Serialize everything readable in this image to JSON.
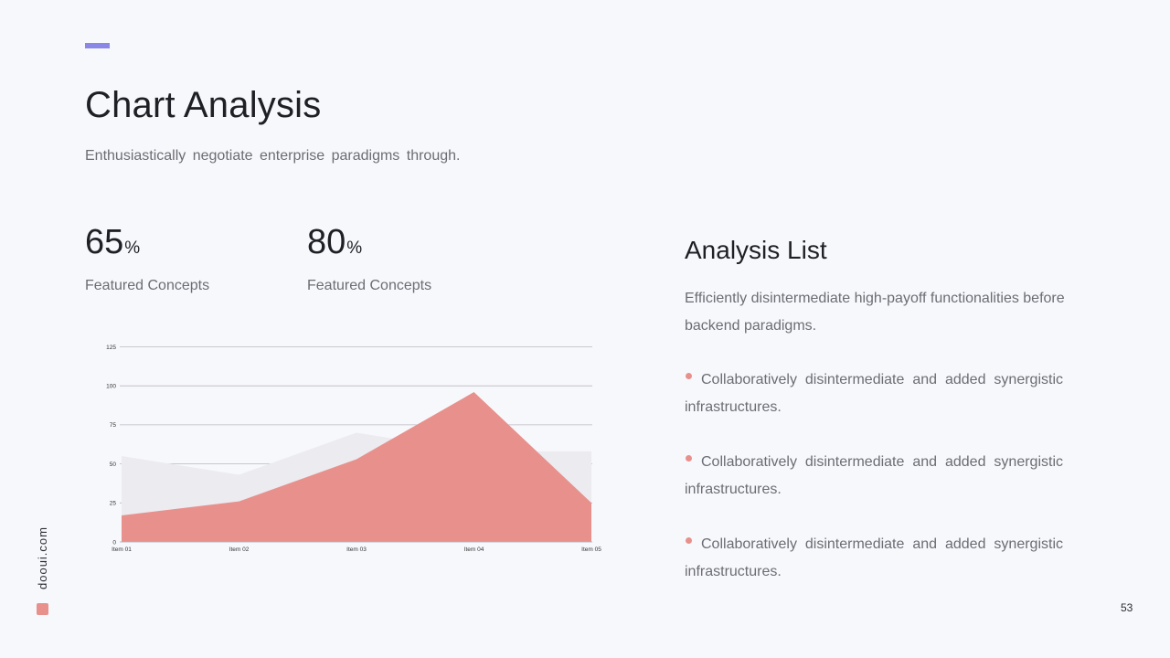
{
  "slide": {
    "title": "Chart Analysis",
    "subtitle": "Enthusiastically negotiate enterprise paradigms through.",
    "accent_color": "#8b87e6",
    "page_number": "53",
    "brand": "dooui.com"
  },
  "stats": [
    {
      "value": "65",
      "unit": "%",
      "caption": "Featured Concepts"
    },
    {
      "value": "80",
      "unit": "%",
      "caption": "Featured Concepts"
    }
  ],
  "analysis": {
    "title": "Analysis List",
    "description": "Efficiently disintermediate  high-payoff functionalities before backend paradigms.",
    "bullets": [
      "Collaboratively  disintermediate  and added synergistic infrastructures.",
      "Collaboratively  disintermediate  and added synergistic infrastructures.",
      "Collaboratively  disintermediate  and added synergistic infrastructures."
    ],
    "bullet_color": "#e8908c"
  },
  "chart_data": {
    "type": "area",
    "categories": [
      "Item 01",
      "Item 02",
      "Item 03",
      "Item 04",
      "Item 05"
    ],
    "ylim": [
      0,
      125
    ],
    "yticks": [
      0,
      25,
      50,
      75,
      100,
      125
    ],
    "grid": true,
    "series": [
      {
        "values": [
          55,
          43,
          70,
          58,
          58
        ],
        "color": "#ebebf0"
      },
      {
        "values": [
          17,
          26,
          53,
          96,
          25
        ],
        "color": "#e8908c"
      }
    ]
  }
}
